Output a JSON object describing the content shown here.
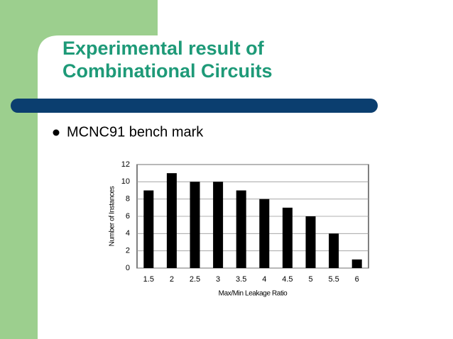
{
  "slide": {
    "title_lines": [
      "Experimental result of",
      "Combinational Circuits"
    ],
    "bullet": "MCNC91 bench mark"
  },
  "chart_data": {
    "type": "bar",
    "x_label": "Max/Min Leakage Ratio",
    "y_label": "Number of Instances",
    "categories": [
      "1.5",
      "2",
      "2.5",
      "3",
      "3.5",
      "4",
      "4.5",
      "5",
      "5.5",
      "6"
    ],
    "values": [
      9,
      11,
      10,
      10,
      9,
      8,
      7,
      6,
      4,
      1
    ],
    "color": "#000000",
    "ylim": [
      0,
      12
    ],
    "yticks": [
      0,
      2,
      4,
      6,
      8,
      10,
      12
    ],
    "grid": true
  }
}
